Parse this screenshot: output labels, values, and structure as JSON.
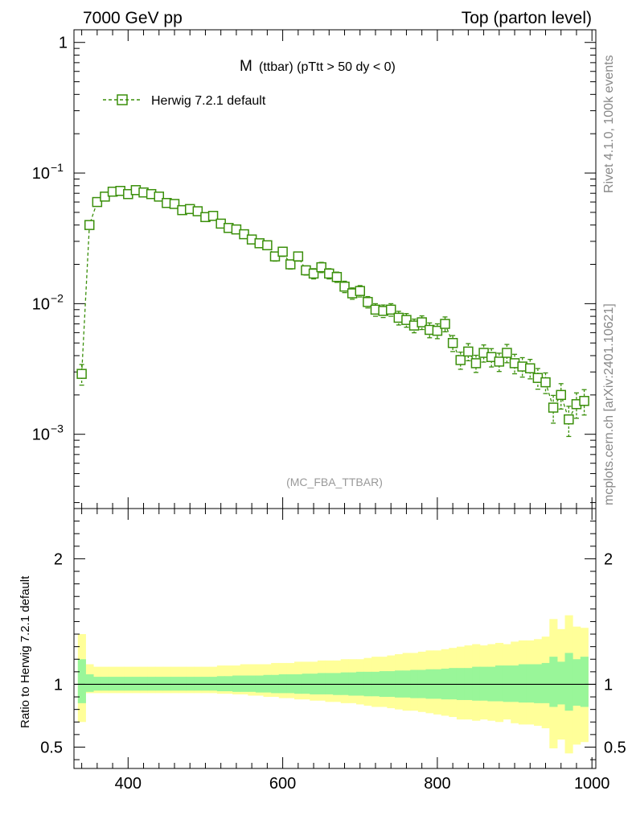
{
  "header": {
    "left": "7000 GeV pp",
    "right": "Top (parton level)"
  },
  "side": {
    "rivet": "Rivet 4.1.0,  100k events",
    "mcplots": "mcplots.cern.ch [arXiv:2401.10621]"
  },
  "chart_data": [
    {
      "type": "scatter",
      "title": "M",
      "title_suffix": "(ttbar) (pTtt > 50 dy < 0)",
      "analysis": "(MC_FBA_TTBAR)",
      "yscale": "log",
      "ylim": [
        0.00027,
        1.25
      ],
      "xlim": [
        330,
        1005
      ],
      "ytick_labels": [
        "1",
        "10",
        "10",
        "10"
      ],
      "ytick_exponents": [
        "",
        "−1",
        "−2",
        "−3"
      ],
      "legend": "Herwig 7.2.1 default",
      "color": "#3a8f0a",
      "series": [
        {
          "name": "Herwig 7.2.1 default",
          "x": [
            340,
            350,
            360,
            370,
            380,
            390,
            400,
            410,
            420,
            430,
            440,
            450,
            460,
            470,
            480,
            490,
            500,
            510,
            520,
            530,
            540,
            550,
            560,
            570,
            580,
            590,
            600,
            610,
            620,
            630,
            640,
            650,
            660,
            670,
            680,
            690,
            700,
            710,
            720,
            730,
            740,
            750,
            760,
            770,
            780,
            790,
            800,
            810,
            820,
            830,
            840,
            850,
            860,
            870,
            880,
            890,
            900,
            910,
            920,
            930,
            940,
            950,
            960,
            970,
            980,
            990
          ],
          "y": [
            0.0029,
            0.04,
            0.06,
            0.066,
            0.072,
            0.073,
            0.069,
            0.074,
            0.071,
            0.069,
            0.066,
            0.059,
            0.058,
            0.052,
            0.053,
            0.051,
            0.046,
            0.047,
            0.041,
            0.038,
            0.037,
            0.034,
            0.031,
            0.029,
            0.028,
            0.023,
            0.025,
            0.02,
            0.023,
            0.018,
            0.017,
            0.019,
            0.017,
            0.016,
            0.0135,
            0.012,
            0.0125,
            0.0103,
            0.009,
            0.0088,
            0.009,
            0.0078,
            0.0075,
            0.0068,
            0.0072,
            0.0063,
            0.0062,
            0.007,
            0.005,
            0.0037,
            0.0043,
            0.0035,
            0.0042,
            0.0039,
            0.0036,
            0.0042,
            0.0035,
            0.0033,
            0.0032,
            0.0027,
            0.0025,
            0.0016,
            0.002,
            0.0013,
            0.0017,
            0.0018
          ],
          "yerr_rel": [
            0.18,
            0.06,
            0.05,
            0.05,
            0.05,
            0.05,
            0.05,
            0.05,
            0.05,
            0.05,
            0.05,
            0.05,
            0.05,
            0.05,
            0.05,
            0.05,
            0.06,
            0.06,
            0.06,
            0.06,
            0.06,
            0.07,
            0.07,
            0.07,
            0.07,
            0.08,
            0.08,
            0.08,
            0.08,
            0.08,
            0.09,
            0.09,
            0.09,
            0.09,
            0.1,
            0.1,
            0.1,
            0.1,
            0.11,
            0.11,
            0.11,
            0.12,
            0.12,
            0.12,
            0.12,
            0.13,
            0.13,
            0.13,
            0.14,
            0.15,
            0.15,
            0.15,
            0.15,
            0.16,
            0.16,
            0.16,
            0.17,
            0.17,
            0.17,
            0.18,
            0.18,
            0.24,
            0.22,
            0.26,
            0.22,
            0.22
          ]
        }
      ]
    },
    {
      "type": "area",
      "ylabel": "Ratio to Herwig 7.2.1 default",
      "xlabel": "",
      "xlim": [
        330,
        1005
      ],
      "ylim": [
        0.33,
        2.4
      ],
      "xticks": [
        400,
        600,
        800,
        1000
      ],
      "xtick_labels": [
        "400",
        "600",
        "800",
        "1000"
      ],
      "yticks": [
        0.5,
        1,
        2
      ],
      "ytick_labels": [
        "0.5",
        "1",
        "2"
      ],
      "ratio_line": 1,
      "bands": {
        "inner_color": "#99f699",
        "outer_color": "#ffff99",
        "x": [
          340,
          350,
          360,
          370,
          380,
          390,
          400,
          410,
          420,
          430,
          440,
          450,
          460,
          470,
          480,
          490,
          500,
          510,
          520,
          530,
          540,
          550,
          560,
          570,
          580,
          590,
          600,
          610,
          620,
          630,
          640,
          650,
          660,
          670,
          680,
          690,
          700,
          710,
          720,
          730,
          740,
          750,
          760,
          770,
          780,
          790,
          800,
          810,
          820,
          830,
          840,
          850,
          860,
          870,
          880,
          890,
          900,
          910,
          920,
          930,
          940,
          950,
          960,
          970,
          980,
          990
        ],
        "inner_up": [
          1.2,
          1.08,
          1.06,
          1.06,
          1.06,
          1.06,
          1.06,
          1.06,
          1.06,
          1.06,
          1.06,
          1.06,
          1.06,
          1.06,
          1.06,
          1.06,
          1.06,
          1.06,
          1.065,
          1.065,
          1.07,
          1.07,
          1.07,
          1.07,
          1.075,
          1.075,
          1.08,
          1.08,
          1.08,
          1.085,
          1.085,
          1.09,
          1.09,
          1.09,
          1.095,
          1.095,
          1.1,
          1.1,
          1.1,
          1.105,
          1.105,
          1.11,
          1.11,
          1.115,
          1.115,
          1.12,
          1.12,
          1.125,
          1.13,
          1.13,
          1.13,
          1.14,
          1.14,
          1.14,
          1.15,
          1.15,
          1.15,
          1.16,
          1.16,
          1.16,
          1.17,
          1.22,
          1.18,
          1.25,
          1.2,
          1.22
        ],
        "inner_dn": [
          0.85,
          0.94,
          0.95,
          0.95,
          0.95,
          0.95,
          0.95,
          0.95,
          0.95,
          0.95,
          0.95,
          0.95,
          0.95,
          0.95,
          0.95,
          0.95,
          0.95,
          0.95,
          0.945,
          0.945,
          0.94,
          0.94,
          0.94,
          0.935,
          0.935,
          0.93,
          0.93,
          0.93,
          0.925,
          0.925,
          0.92,
          0.92,
          0.92,
          0.915,
          0.915,
          0.91,
          0.91,
          0.905,
          0.905,
          0.9,
          0.9,
          0.895,
          0.895,
          0.89,
          0.89,
          0.885,
          0.885,
          0.88,
          0.88,
          0.875,
          0.875,
          0.87,
          0.87,
          0.865,
          0.865,
          0.86,
          0.86,
          0.855,
          0.855,
          0.85,
          0.85,
          0.82,
          0.84,
          0.79,
          0.83,
          0.82
        ],
        "outer_up": [
          1.4,
          1.16,
          1.14,
          1.14,
          1.14,
          1.14,
          1.14,
          1.14,
          1.14,
          1.14,
          1.14,
          1.14,
          1.14,
          1.14,
          1.14,
          1.14,
          1.14,
          1.14,
          1.15,
          1.15,
          1.15,
          1.16,
          1.16,
          1.16,
          1.16,
          1.17,
          1.17,
          1.17,
          1.18,
          1.18,
          1.18,
          1.19,
          1.19,
          1.19,
          1.2,
          1.2,
          1.2,
          1.21,
          1.22,
          1.22,
          1.23,
          1.24,
          1.25,
          1.25,
          1.26,
          1.27,
          1.27,
          1.28,
          1.29,
          1.3,
          1.31,
          1.32,
          1.31,
          1.32,
          1.33,
          1.32,
          1.34,
          1.35,
          1.35,
          1.36,
          1.38,
          1.52,
          1.44,
          1.55,
          1.46,
          1.45
        ],
        "outer_dn": [
          0.7,
          0.93,
          0.93,
          0.93,
          0.93,
          0.93,
          0.93,
          0.93,
          0.93,
          0.93,
          0.93,
          0.93,
          0.93,
          0.93,
          0.93,
          0.93,
          0.93,
          0.93,
          0.925,
          0.925,
          0.92,
          0.92,
          0.91,
          0.91,
          0.9,
          0.9,
          0.89,
          0.89,
          0.88,
          0.88,
          0.87,
          0.87,
          0.86,
          0.86,
          0.85,
          0.85,
          0.84,
          0.83,
          0.82,
          0.82,
          0.81,
          0.8,
          0.79,
          0.79,
          0.78,
          0.77,
          0.76,
          0.75,
          0.74,
          0.72,
          0.72,
          0.71,
          0.72,
          0.71,
          0.7,
          0.72,
          0.69,
          0.68,
          0.68,
          0.67,
          0.65,
          0.49,
          0.56,
          0.45,
          0.52,
          0.54
        ]
      }
    }
  ]
}
